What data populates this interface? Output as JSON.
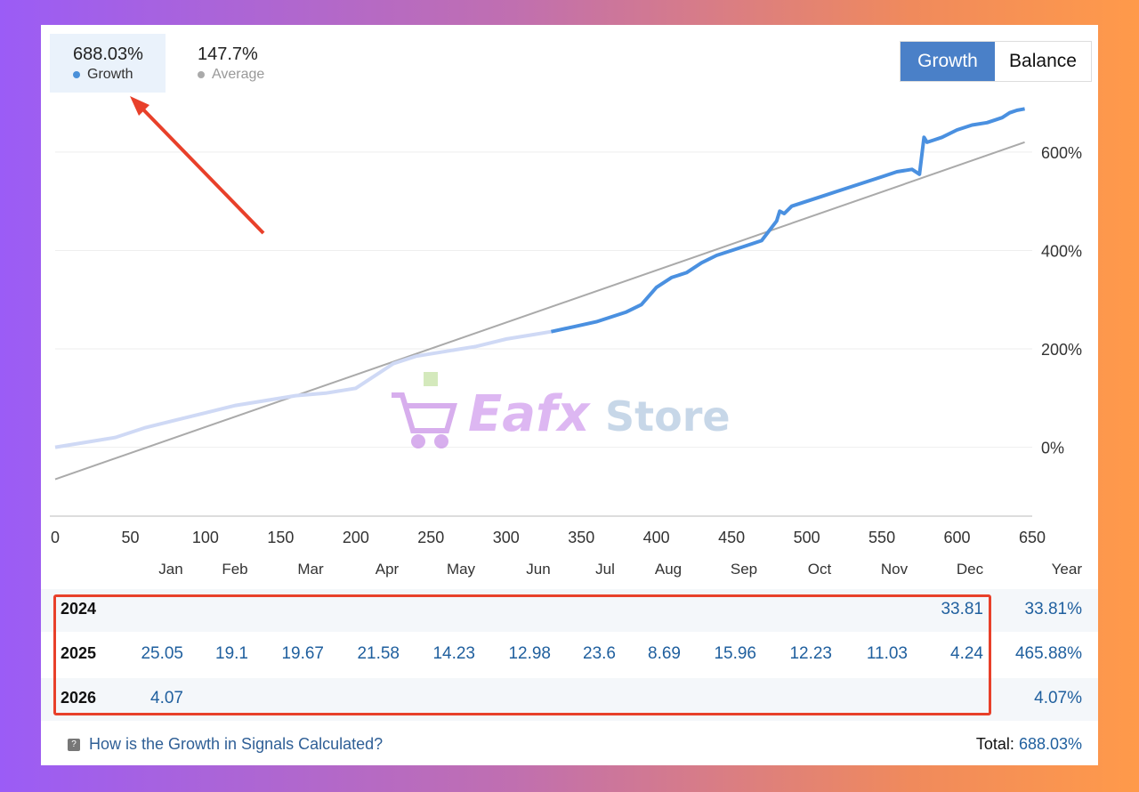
{
  "stats": {
    "growth": {
      "value": "688.03%",
      "label": "Growth",
      "color": "#4a90d9"
    },
    "average": {
      "value": "147.7%",
      "label": "Average",
      "color": "#aaaaaa"
    }
  },
  "toggle": {
    "growth_label": "Growth",
    "balance_label": "Balance"
  },
  "chart_data": {
    "type": "line",
    "x_ticks": [
      "0",
      "50",
      "100",
      "150",
      "200",
      "250",
      "300",
      "350",
      "400",
      "450",
      "500",
      "550",
      "600",
      "650"
    ],
    "y_ticks": [
      "0%",
      "200%",
      "400%",
      "600%"
    ],
    "xlim": [
      0,
      650
    ],
    "ylim": [
      -140,
      750
    ],
    "series": [
      {
        "name": "Growth",
        "color": "#4a90d9",
        "x": [
          0,
          20,
          40,
          60,
          80,
          100,
          120,
          140,
          160,
          180,
          200,
          215,
          225,
          240,
          260,
          280,
          300,
          320,
          330,
          345,
          360,
          370,
          380,
          390,
          400,
          410,
          420,
          430,
          440,
          450,
          460,
          470,
          480,
          482,
          485,
          490,
          500,
          510,
          520,
          530,
          540,
          550,
          560,
          570,
          575,
          578,
          580,
          585,
          590,
          600,
          610,
          620,
          630,
          635,
          640,
          645
        ],
        "y": [
          0,
          10,
          20,
          40,
          55,
          70,
          85,
          95,
          105,
          110,
          120,
          150,
          170,
          185,
          195,
          205,
          220,
          230,
          235,
          245,
          255,
          265,
          275,
          290,
          325,
          345,
          355,
          375,
          390,
          400,
          410,
          420,
          460,
          480,
          475,
          490,
          500,
          510,
          520,
          530,
          540,
          550,
          560,
          565,
          555,
          630,
          620,
          625,
          630,
          645,
          655,
          660,
          670,
          680,
          685,
          688
        ]
      },
      {
        "name": "Average",
        "color": "#aaaaaa",
        "x": [
          0,
          645
        ],
        "y": [
          -65,
          620
        ]
      }
    ]
  },
  "table": {
    "months": [
      "Jan",
      "Feb",
      "Mar",
      "Apr",
      "May",
      "Jun",
      "Jul",
      "Aug",
      "Sep",
      "Oct",
      "Nov",
      "Dec"
    ],
    "year_header": "Year",
    "rows": [
      {
        "year": "2024",
        "values": [
          "",
          "",
          "",
          "",
          "",
          "",
          "",
          "",
          "",
          "",
          "",
          "33.81"
        ],
        "total": "33.81%"
      },
      {
        "year": "2025",
        "values": [
          "25.05",
          "19.1",
          "19.67",
          "21.58",
          "14.23",
          "12.98",
          "23.6",
          "8.69",
          "15.96",
          "12.23",
          "11.03",
          "4.24"
        ],
        "total": "465.88%"
      },
      {
        "year": "2026",
        "values": [
          "4.07",
          "",
          "",
          "",
          "",
          "",
          "",
          "",
          "",
          "",
          "",
          ""
        ],
        "total": "4.07%"
      }
    ]
  },
  "footer": {
    "help_text": "How is the Growth in Signals Calculated?",
    "total_label": "Total:",
    "total_value": "688.03%"
  },
  "watermark": {
    "text_a": "Eafx",
    "text_b": "Store"
  }
}
